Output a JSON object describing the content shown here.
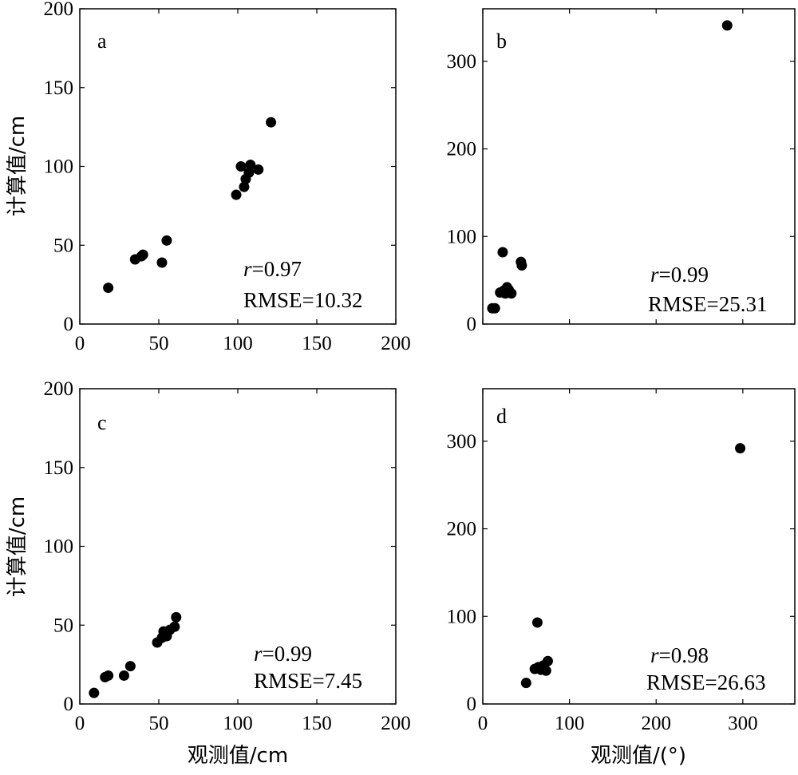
{
  "chart_data": [
    {
      "type": "scatter",
      "panel_label": "a",
      "xlabel": "",
      "ylabel": "计算值/cm",
      "xlim": [
        0,
        200
      ],
      "ylim": [
        0,
        200
      ],
      "xticks": [
        "0",
        "50",
        "100",
        "150",
        "200"
      ],
      "yticks": [
        "0",
        "50",
        "100",
        "150",
        "200"
      ],
      "grid": false,
      "stats": {
        "r_symbol": "r",
        "r_value": "=0.97",
        "rmse": "RMSE=10.32"
      },
      "points": [
        {
          "x": 18,
          "y": 23
        },
        {
          "x": 35,
          "y": 41
        },
        {
          "x": 39,
          "y": 43
        },
        {
          "x": 40,
          "y": 44
        },
        {
          "x": 52,
          "y": 39
        },
        {
          "x": 55,
          "y": 53
        },
        {
          "x": 99,
          "y": 82
        },
        {
          "x": 102,
          "y": 100
        },
        {
          "x": 104,
          "y": 87
        },
        {
          "x": 105,
          "y": 92
        },
        {
          "x": 107,
          "y": 96
        },
        {
          "x": 108,
          "y": 101
        },
        {
          "x": 113,
          "y": 98
        },
        {
          "x": 121,
          "y": 128
        }
      ]
    },
    {
      "type": "scatter",
      "panel_label": "b",
      "xlabel": "",
      "ylabel": "",
      "xlim": [
        0,
        360
      ],
      "ylim": [
        0,
        360
      ],
      "xticks": [],
      "yticks": [
        "0",
        "100",
        "200",
        "300"
      ],
      "grid": false,
      "stats": {
        "r_symbol": "r",
        "r_value": "=0.99",
        "rmse": "RMSE=25.31"
      },
      "points": [
        {
          "x": 11,
          "y": 18
        },
        {
          "x": 14,
          "y": 18
        },
        {
          "x": 20,
          "y": 36
        },
        {
          "x": 23,
          "y": 82
        },
        {
          "x": 24,
          "y": 38
        },
        {
          "x": 26,
          "y": 35
        },
        {
          "x": 28,
          "y": 42
        },
        {
          "x": 30,
          "y": 39
        },
        {
          "x": 33,
          "y": 35
        },
        {
          "x": 44,
          "y": 71
        },
        {
          "x": 45,
          "y": 67
        },
        {
          "x": 282,
          "y": 341
        }
      ]
    },
    {
      "type": "scatter",
      "panel_label": "c",
      "xlabel": "观测值/cm",
      "ylabel": "计算值/cm",
      "xlim": [
        0,
        200
      ],
      "ylim": [
        0,
        200
      ],
      "xticks": [
        "0",
        "50",
        "100",
        "150",
        "200"
      ],
      "yticks": [
        "0",
        "50",
        "100",
        "150",
        "200"
      ],
      "grid": false,
      "stats": {
        "r_symbol": "r",
        "r_value": "=0.99",
        "rmse": "RMSE=7.45"
      },
      "points": [
        {
          "x": 9,
          "y": 7
        },
        {
          "x": 16,
          "y": 17
        },
        {
          "x": 18,
          "y": 18
        },
        {
          "x": 28,
          "y": 18
        },
        {
          "x": 32,
          "y": 24
        },
        {
          "x": 49,
          "y": 39
        },
        {
          "x": 52,
          "y": 42
        },
        {
          "x": 53,
          "y": 46
        },
        {
          "x": 55,
          "y": 43
        },
        {
          "x": 57,
          "y": 47
        },
        {
          "x": 60,
          "y": 49
        },
        {
          "x": 61,
          "y": 55
        }
      ]
    },
    {
      "type": "scatter",
      "panel_label": "d",
      "xlabel": "观测值/(°)",
      "ylabel": "",
      "xlim": [
        0,
        360
      ],
      "ylim": [
        0,
        360
      ],
      "xticks": [
        "0",
        "100",
        "200",
        "300"
      ],
      "yticks": [
        "0",
        "100",
        "200",
        "300"
      ],
      "grid": false,
      "stats": {
        "r_symbol": "r",
        "r_value": "=0.98",
        "rmse": "RMSE=26.63"
      },
      "points": [
        {
          "x": 50,
          "y": 24
        },
        {
          "x": 60,
          "y": 40
        },
        {
          "x": 63,
          "y": 93
        },
        {
          "x": 64,
          "y": 42
        },
        {
          "x": 67,
          "y": 39
        },
        {
          "x": 70,
          "y": 44
        },
        {
          "x": 73,
          "y": 38
        },
        {
          "x": 75,
          "y": 49
        },
        {
          "x": 297,
          "y": 292
        }
      ]
    }
  ]
}
